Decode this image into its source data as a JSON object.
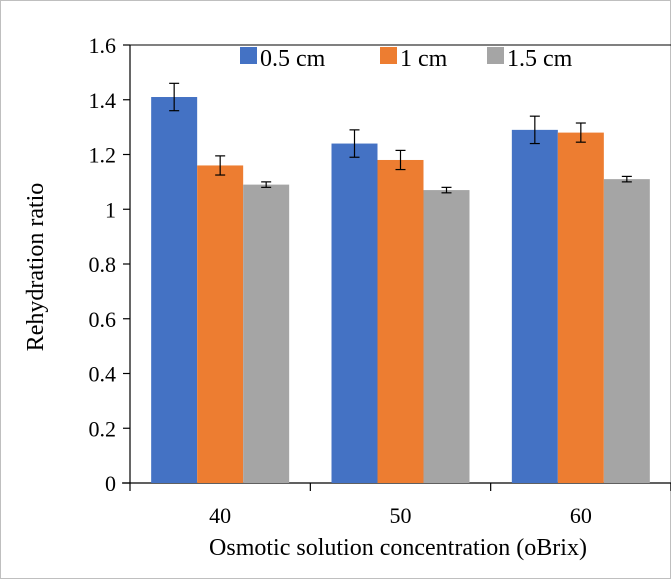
{
  "chart_data": {
    "type": "bar",
    "categories": [
      "40",
      "50",
      "60"
    ],
    "series": [
      {
        "name": "0.5 cm",
        "color": "#4472c4",
        "values": [
          1.41,
          1.24,
          1.29
        ],
        "errors": [
          0.05,
          0.05,
          0.05
        ]
      },
      {
        "name": "1 cm",
        "color": "#ed7d31",
        "values": [
          1.16,
          1.18,
          1.28
        ],
        "errors": [
          0.035,
          0.035,
          0.035
        ]
      },
      {
        "name": "1.5 cm",
        "color": "#a5a5a5",
        "values": [
          1.09,
          1.07,
          1.11
        ],
        "errors": [
          0.01,
          0.01,
          0.01
        ]
      }
    ],
    "xlabel": "Osmotic solution concentration (oBrix)",
    "ylabel": "Rehydration ratio",
    "ylim": [
      0,
      1.6
    ],
    "yticks": [
      "0",
      "0.2",
      "0.4",
      "0.6",
      "0.8",
      "1",
      "1.2",
      "1.4",
      "1.6"
    ],
    "grid": false,
    "legend_position": "top"
  }
}
